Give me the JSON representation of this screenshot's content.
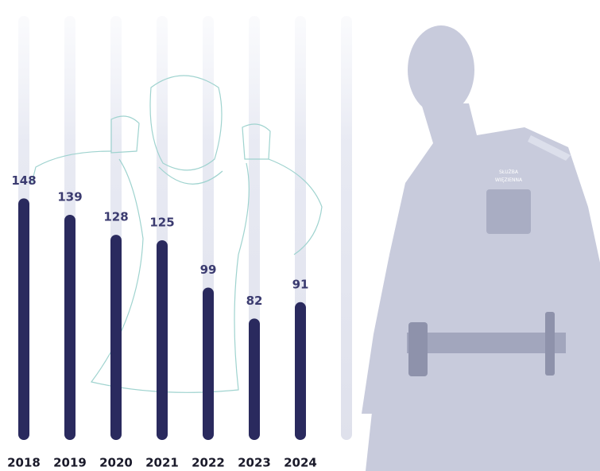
{
  "chart_data": {
    "type": "bar",
    "categories": [
      "2018",
      "2019",
      "2020",
      "2021",
      "2022",
      "2023",
      "2024"
    ],
    "values": [
      148,
      139,
      128,
      125,
      99,
      82,
      91
    ],
    "color": "#2a2a5e",
    "ylim": [
      0,
      250
    ],
    "badge_text": [
      "SŁUŻBA",
      "WIĘZIENNA"
    ]
  }
}
